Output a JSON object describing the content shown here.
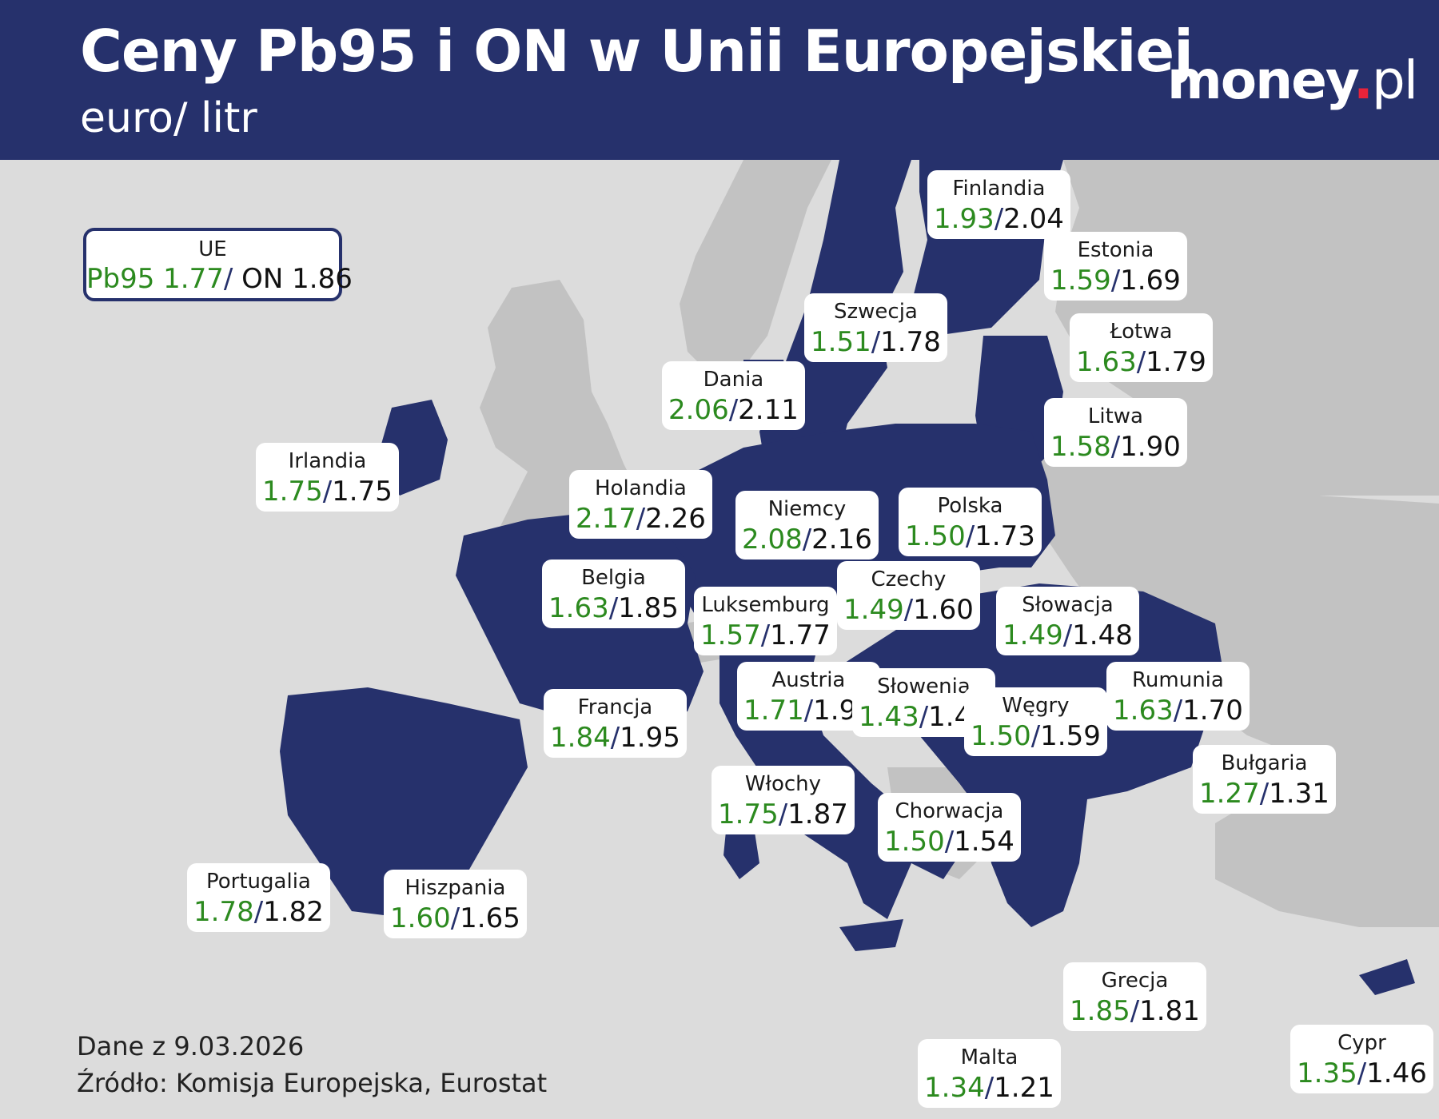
{
  "header": {
    "title": "Ceny Pb95 i ON w Unii Europejskiej",
    "subtitle": "euro/ litr",
    "brand_main": "money",
    "brand_dot": ".",
    "brand_tld": "pl"
  },
  "eu_average": {
    "name": "UE",
    "pb95_label": "Pb95",
    "pb95": "1.77",
    "separator": "/",
    "on_label": "ON",
    "on": "1.86"
  },
  "countries": [
    {
      "name": "Finlandia",
      "pb95": "1.93",
      "on": "2.04"
    },
    {
      "name": "Estonia",
      "pb95": "1.59",
      "on": "1.69"
    },
    {
      "name": "Szwecja",
      "pb95": "1.51",
      "on": "1.78"
    },
    {
      "name": "Łotwa",
      "pb95": "1.63",
      "on": "1.79"
    },
    {
      "name": "Dania",
      "pb95": "2.06",
      "on": "2.11"
    },
    {
      "name": "Litwa",
      "pb95": "1.58",
      "on": "1.90"
    },
    {
      "name": "Irlandia",
      "pb95": "1.75",
      "on": "1.75"
    },
    {
      "name": "Holandia",
      "pb95": "2.17",
      "on": "2.26"
    },
    {
      "name": "Niemcy",
      "pb95": "2.08",
      "on": "2.16"
    },
    {
      "name": "Polska",
      "pb95": "1.50",
      "on": "1.73"
    },
    {
      "name": "Belgia",
      "pb95": "1.63",
      "on": "1.85"
    },
    {
      "name": "Czechy",
      "pb95": "1.49",
      "on": "1.60"
    },
    {
      "name": "Luksemburg",
      "pb95": "1.57",
      "on": "1.77"
    },
    {
      "name": "Słowacja",
      "pb95": "1.49",
      "on": "1.48"
    },
    {
      "name": "Austria",
      "pb95": "1.71",
      "on": "1.90"
    },
    {
      "name": "Słowenia",
      "pb95": "1.43",
      "on": "1.46"
    },
    {
      "name": "Rumunia",
      "pb95": "1.63",
      "on": "1.70"
    },
    {
      "name": "Francja",
      "pb95": "1.84",
      "on": "1.95"
    },
    {
      "name": "Węgry",
      "pb95": "1.50",
      "on": "1.59"
    },
    {
      "name": "Bułgaria",
      "pb95": "1.27",
      "on": "1.31"
    },
    {
      "name": "Włochy",
      "pb95": "1.75",
      "on": "1.87"
    },
    {
      "name": "Chorwacja",
      "pb95": "1.50",
      "on": "1.54"
    },
    {
      "name": "Portugalia",
      "pb95": "1.78",
      "on": "1.82"
    },
    {
      "name": "Hiszpania",
      "pb95": "1.60",
      "on": "1.65"
    },
    {
      "name": "Grecja",
      "pb95": "1.85",
      "on": "1.81"
    },
    {
      "name": "Malta",
      "pb95": "1.34",
      "on": "1.21"
    },
    {
      "name": "Cypr",
      "pb95": "1.35",
      "on": "1.46"
    }
  ],
  "value_separator": "/",
  "colors": {
    "header_bg": "#26316c",
    "eu_fill": "#26316c",
    "non_eu_fill": "#c2c2c2",
    "sea": "#dcdcdc",
    "pb95_text": "#2c8a1f",
    "on_text": "#111111",
    "brand_dot": "#e8233a"
  },
  "footer": {
    "date": "Dane z 9.03.2026",
    "source": "Źródło: Komisja Europejska, Eurostat"
  }
}
